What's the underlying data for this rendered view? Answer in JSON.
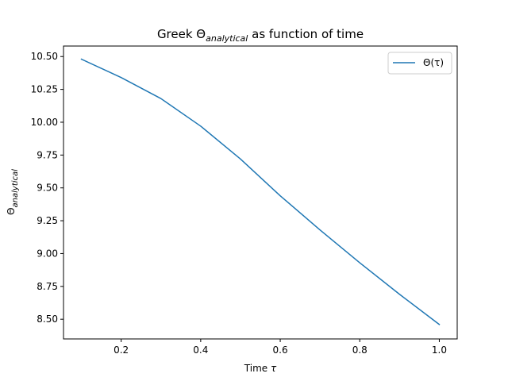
{
  "chart_data": {
    "type": "line",
    "title_main": "Greek Θ",
    "title_sub": "analytical",
    "title_tail": " as function of time",
    "xlabel_main": "Time ",
    "xlabel_symbol": "τ",
    "ylabel_main": "Θ",
    "ylabel_sub": "analytical",
    "xlim": [
      0.055,
      1.045
    ],
    "ylim": [
      8.35,
      10.58
    ],
    "xticks": [
      0.2,
      0.4,
      0.6,
      0.8,
      1.0
    ],
    "xtick_labels": [
      "0.2",
      "0.4",
      "0.6",
      "0.8",
      "1.0"
    ],
    "yticks": [
      8.5,
      8.75,
      9.0,
      9.25,
      9.5,
      9.75,
      10.0,
      10.25,
      10.5
    ],
    "ytick_labels": [
      "8.50",
      "8.75",
      "9.00",
      "9.25",
      "9.50",
      "9.75",
      "10.00",
      "10.25",
      "10.50"
    ],
    "grid": false,
    "legend_position": "top-right",
    "series": [
      {
        "name": "Θ(τ)",
        "color": "#1f77b4",
        "x": [
          0.1,
          0.2,
          0.3,
          0.4,
          0.5,
          0.6,
          0.7,
          0.8,
          0.9,
          1.0
        ],
        "y": [
          10.48,
          10.34,
          10.18,
          9.97,
          9.72,
          9.44,
          9.18,
          8.93,
          8.69,
          8.46
        ]
      }
    ]
  }
}
